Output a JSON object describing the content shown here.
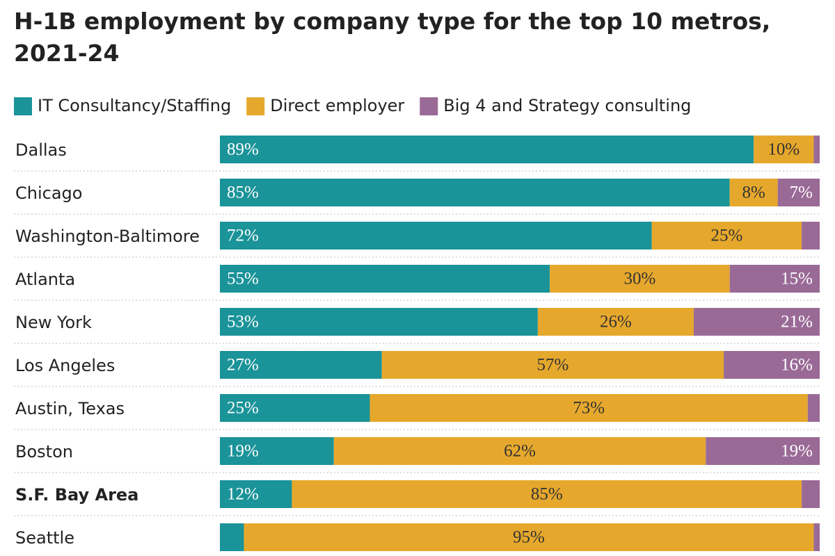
{
  "chart_data": {
    "type": "stacked_bar_horizontal",
    "title": "H-1B employment by company type for the top 10 metros, 2021-24",
    "categories": [
      "Dallas",
      "Chicago",
      "Washington-Baltimore",
      "Atlanta",
      "New York",
      "Los Angeles",
      "Austin, Texas",
      "Boston",
      "S.F. Bay Area",
      "Seattle"
    ],
    "highlight_category": 8,
    "xlim": [
      0,
      100
    ],
    "legend": "top-left",
    "series": [
      {
        "name": "IT Consultancy/Staffing",
        "color": "#1a9399",
        "label_color": "#ffffff",
        "values": [
          89,
          85,
          72,
          55,
          53,
          27,
          25,
          19,
          12,
          4
        ],
        "value_labels": [
          "89%",
          "85%",
          "72%",
          "55%",
          "53%",
          "27%",
          "25%",
          "19%",
          "12%",
          null
        ]
      },
      {
        "name": "Direct employer",
        "color": "#e6a82c",
        "label_color": "#333333",
        "values": [
          10,
          8,
          25,
          30,
          26,
          57,
          73,
          62,
          85,
          95
        ],
        "value_labels": [
          "10%",
          "8%",
          "25%",
          "30%",
          "26%",
          "57%",
          "73%",
          "62%",
          "85%",
          "95%"
        ]
      },
      {
        "name": "Big 4 and Strategy consulting",
        "color": "#9a6a97",
        "label_color": "#ffffff",
        "values": [
          1,
          7,
          3,
          15,
          21,
          16,
          2,
          19,
          3,
          1
        ],
        "value_labels": [
          null,
          "7%",
          null,
          "15%",
          "21%",
          "16%",
          null,
          "19%",
          null,
          null
        ]
      }
    ]
  }
}
